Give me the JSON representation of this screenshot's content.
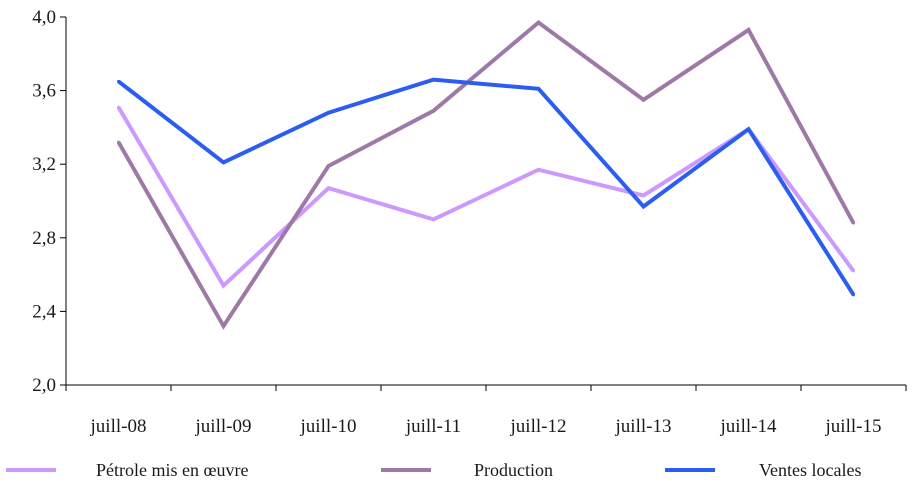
{
  "chart_data": {
    "type": "line",
    "categories": [
      "juill-08",
      "juill-09",
      "juill-10",
      "juill-11",
      "juill-12",
      "juill-13",
      "juill-14",
      "juill-15"
    ],
    "yticks": [
      "2,0",
      "2,4",
      "2,8",
      "3,2",
      "3,6",
      "4,0"
    ],
    "ylim": [
      2.0,
      4.0
    ],
    "grid": false,
    "legend_position": "bottom",
    "series": [
      {
        "name": "Pétrole mis en œuvre",
        "color": "#cc99ff",
        "values": [
          3.51,
          2.54,
          3.07,
          2.9,
          3.17,
          3.03,
          3.39,
          2.62
        ]
      },
      {
        "name": "Production",
        "color": "#9e79a8",
        "values": [
          3.32,
          2.32,
          3.19,
          3.49,
          3.97,
          3.55,
          3.93,
          2.88
        ]
      },
      {
        "name": "Ventes locales",
        "color": "#2b5ef0",
        "values": [
          3.65,
          3.21,
          3.48,
          3.66,
          3.61,
          2.97,
          3.39,
          2.49
        ]
      }
    ]
  }
}
